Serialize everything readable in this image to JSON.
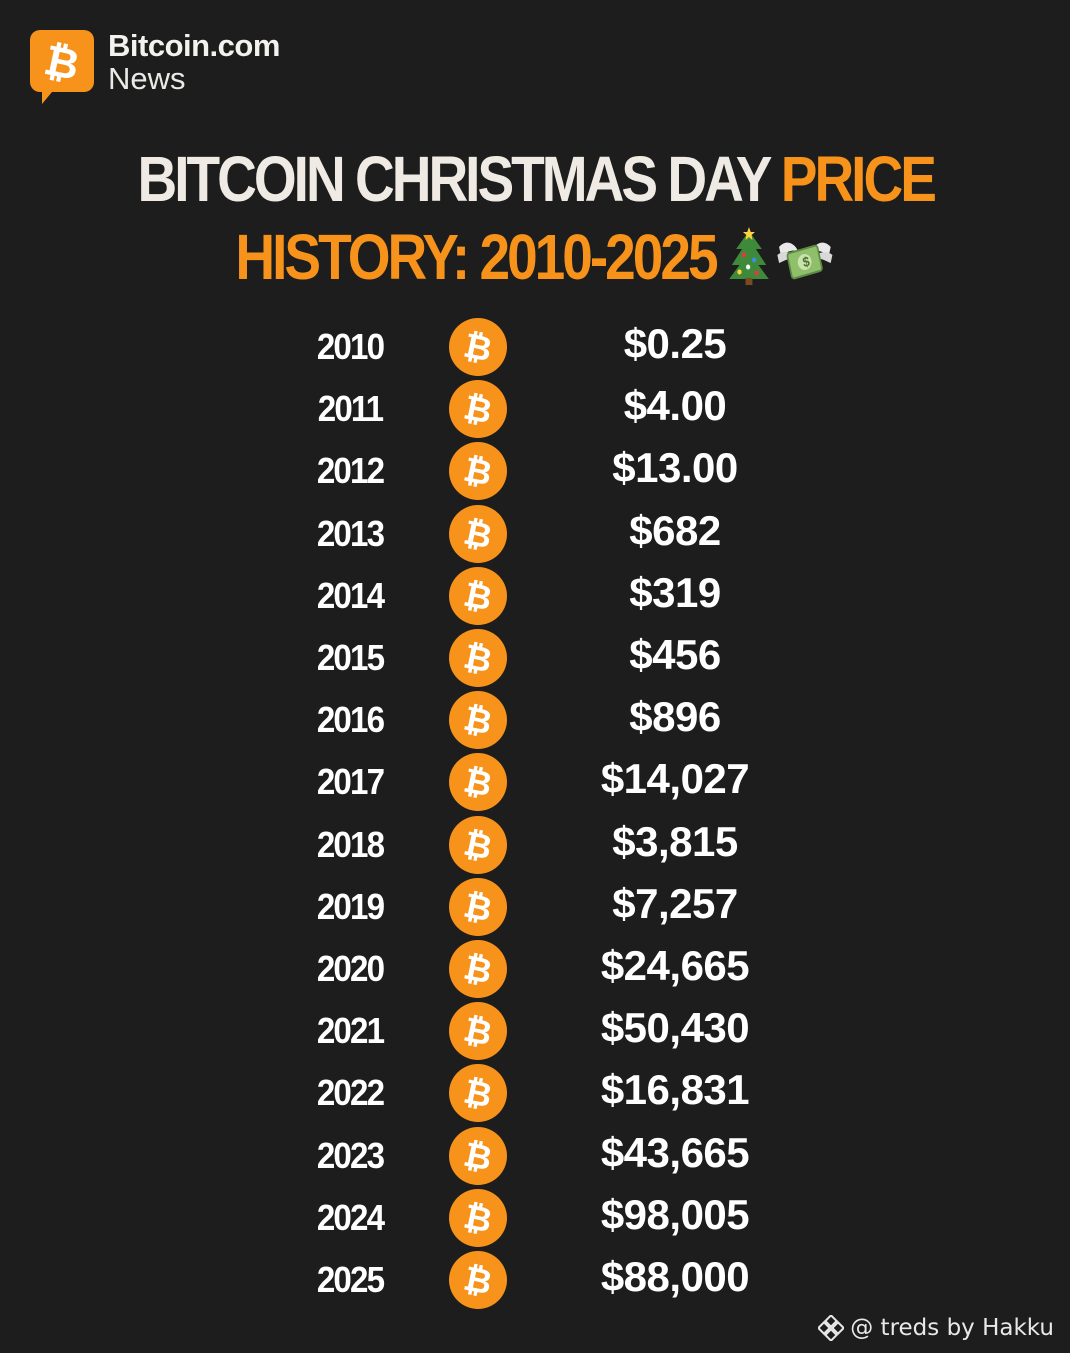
{
  "brand": {
    "name": "Bitcoin.com",
    "sub": "News",
    "logo_icon": "bitcoin-com-chat-bubble-logo"
  },
  "title": {
    "line1_white": "BITCOIN CHRISTMAS DAY",
    "line1_orange": "PRICE",
    "line2_orange": "HISTORY: 2010-2025",
    "emojis": [
      "christmas-tree-icon",
      "money-with-wings-icon"
    ]
  },
  "colors": {
    "background": "#1d1d1d",
    "accent_orange": "#f7931a",
    "title_white": "#efebe4",
    "text_white": "#ffffff"
  },
  "rows": [
    {
      "year": "2010",
      "price": "$0.25"
    },
    {
      "year": "2011",
      "price": "$4.00"
    },
    {
      "year": "2012",
      "price": "$13.00"
    },
    {
      "year": "2013",
      "price": "$682"
    },
    {
      "year": "2014",
      "price": "$319"
    },
    {
      "year": "2015",
      "price": "$456"
    },
    {
      "year": "2016",
      "price": "$896"
    },
    {
      "year": "2017",
      "price": "$14,027"
    },
    {
      "year": "2018",
      "price": "$3,815"
    },
    {
      "year": "2019",
      "price": "$7,257"
    },
    {
      "year": "2020",
      "price": "$24,665"
    },
    {
      "year": "2021",
      "price": "$50,430"
    },
    {
      "year": "2022",
      "price": "$16,831"
    },
    {
      "year": "2023",
      "price": "$43,665"
    },
    {
      "year": "2024",
      "price": "$98,005"
    },
    {
      "year": "2025",
      "price": "$88,000"
    }
  ],
  "row_icon": "bitcoin-coin-icon",
  "watermark": {
    "icon": "binance-logo-icon",
    "text": "@ treds by Hakku"
  }
}
